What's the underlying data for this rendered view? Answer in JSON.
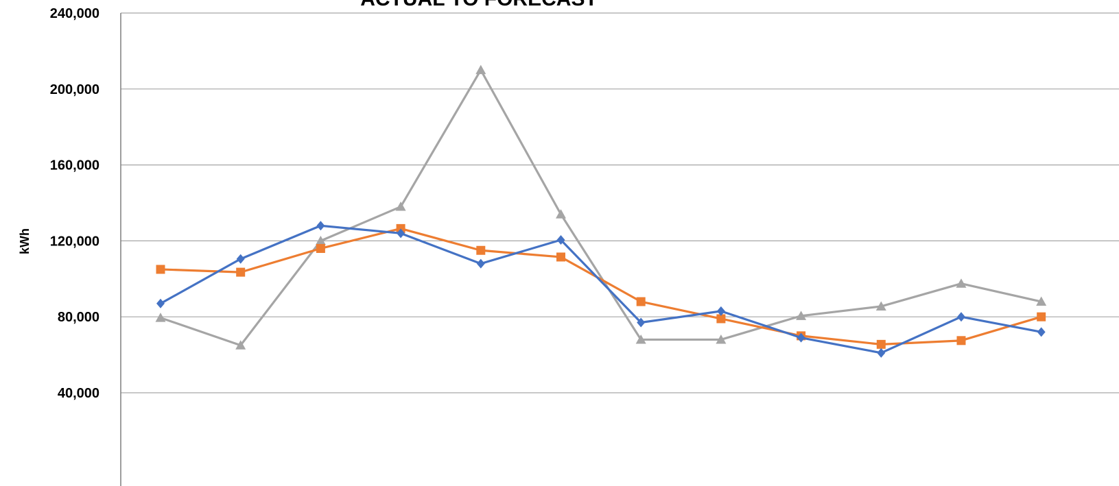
{
  "chart_data": {
    "type": "line",
    "title": "ACTUAL TO FORECAST",
    "ylabel": "kWh",
    "xlabel": "",
    "ylim": [
      0,
      240000
    ],
    "yticks": [
      40000,
      80000,
      120000,
      160000,
      200000,
      240000
    ],
    "ytick_labels": [
      "40,000",
      "80,000",
      "120,000",
      "160,000",
      "200,000",
      "240,000"
    ],
    "grid": true,
    "x": [
      1,
      2,
      3,
      4,
      5,
      6,
      7,
      8,
      9,
      10,
      11,
      12
    ],
    "series": [
      {
        "color": "#4472C4",
        "marker": "diamond",
        "values": [
          87000,
          110500,
          128000,
          124000,
          108000,
          120500,
          77000,
          83000,
          69000,
          61000,
          80000,
          72000
        ]
      },
      {
        "color": "#ED7D31",
        "marker": "square",
        "values": [
          105000,
          103500,
          116000,
          126500,
          115000,
          111500,
          88000,
          79000,
          70000,
          65500,
          67500,
          80000
        ]
      },
      {
        "color": "#A5A5A5",
        "marker": "triangle",
        "values": [
          79500,
          65000,
          120000,
          138000,
          210000,
          134000,
          68000,
          68000,
          80500,
          85500,
          97500,
          88000
        ]
      }
    ]
  }
}
